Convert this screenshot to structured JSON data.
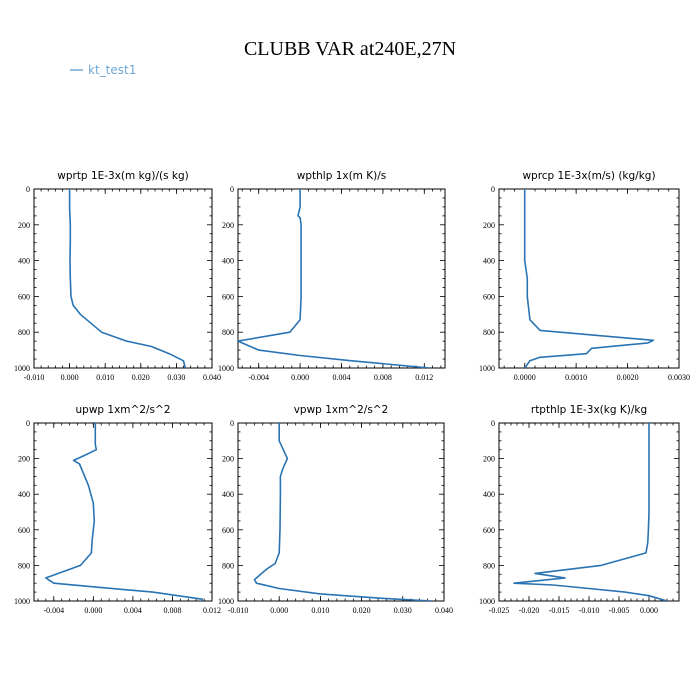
{
  "title": "CLUBB VAR at240E,27N",
  "legend": {
    "label": "kt_test1",
    "color": "#6fa8d6",
    "placement": "top-left"
  },
  "series_color": "#2a73b3",
  "chart_data": [
    {
      "type": "line",
      "title": "wprtp  1E-3x(m kg)/(s kg)",
      "xlim": [
        -0.01,
        0.04
      ],
      "xticks": [
        "-0.010",
        "0.000",
        "0.010",
        "0.020",
        "0.030",
        "0.040"
      ],
      "ylim": [
        1000,
        0
      ],
      "yticks": [
        "0",
        "200",
        "400",
        "600",
        "800",
        "1000"
      ],
      "series": [
        {
          "name": "kt_test1",
          "x": [
            0.0,
            0.0,
            0.0002,
            0.0002,
            0.0001,
            0.0002,
            0.0004,
            0.001,
            0.003,
            0.009,
            0.016,
            0.023,
            0.028,
            0.032,
            0.0325
          ],
          "y": [
            0,
            100,
            200,
            300,
            400,
            500,
            600,
            650,
            700,
            800,
            850,
            880,
            920,
            960,
            1000
          ]
        }
      ]
    },
    {
      "type": "line",
      "title": "wpthlp  1x(m K)/s",
      "xlim": [
        -0.006,
        0.014
      ],
      "xticks": [
        "-0.004",
        "0.000",
        "0.004",
        "0.008",
        "0.012"
      ],
      "ylim": [
        1000,
        0
      ],
      "yticks": [
        "0",
        "200",
        "400",
        "600",
        "800",
        "1000"
      ],
      "series": [
        {
          "name": "kt_test1",
          "x": [
            0.0,
            0.0,
            -0.0002,
            0.0,
            0.0001,
            0.0001,
            0.0001,
            0.0001,
            0.0,
            -0.001,
            -0.006,
            -0.004,
            0.0,
            0.005,
            0.0125
          ],
          "y": [
            0,
            100,
            150,
            160,
            200,
            300,
            400,
            600,
            730,
            800,
            850,
            900,
            930,
            960,
            1000
          ]
        }
      ]
    },
    {
      "type": "line",
      "title": "wprcp  1E-3x(m/s) (kg/kg)",
      "xlim": [
        -0.0005,
        0.003
      ],
      "xticks": [
        "0.0000",
        "0.0010",
        "0.0020",
        "0.0030"
      ],
      "ylim": [
        1000,
        0
      ],
      "yticks": [
        "0",
        "200",
        "400",
        "600",
        "800",
        "1000"
      ],
      "series": [
        {
          "name": "kt_test1",
          "x": [
            0.0,
            0.0,
            0.0,
            0.0,
            0.0,
            5e-05,
            5e-05,
            0.0001,
            0.0003,
            0.0025,
            0.0024,
            0.0013,
            0.0012,
            0.0003,
            0.0001,
            0.0
          ],
          "y": [
            0,
            100,
            200,
            300,
            400,
            500,
            600,
            730,
            790,
            845,
            860,
            890,
            920,
            940,
            960,
            1000
          ]
        }
      ]
    },
    {
      "type": "line",
      "title": "upwp  1xm^2/s^2",
      "xlim": [
        -0.006,
        0.012
      ],
      "xticks": [
        "-0.004",
        "0.000",
        "0.004",
        "0.008",
        "0.012"
      ],
      "ylim": [
        1000,
        0
      ],
      "yticks": [
        "0",
        "200",
        "400",
        "600",
        "800",
        "1000"
      ],
      "series": [
        {
          "name": "kt_test1",
          "x": [
            0.0002,
            0.0002,
            0.0003,
            -0.0008,
            -0.002,
            -0.0014,
            -0.0005,
            0.0,
            0.0001,
            -0.0001,
            -0.0002,
            -0.0013,
            -0.0048,
            -0.004,
            0.0,
            0.006,
            0.011,
            0.011
          ],
          "y": [
            0,
            120,
            150,
            180,
            210,
            230,
            350,
            450,
            550,
            650,
            730,
            800,
            870,
            900,
            920,
            950,
            990,
            1000
          ]
        }
      ]
    },
    {
      "type": "line",
      "title": "vpwp  1xm^2/s^2",
      "xlim": [
        -0.01,
        0.04
      ],
      "xticks": [
        "-0.010",
        "0.000",
        "0.010",
        "0.020",
        "0.030",
        "0.040"
      ],
      "ylim": [
        1000,
        0
      ],
      "yticks": [
        "0",
        "200",
        "400",
        "600",
        "800",
        "1000"
      ],
      "series": [
        {
          "name": "kt_test1",
          "x": [
            0.0,
            0.0,
            0.001,
            0.002,
            0.001,
            0.0003,
            0.0003,
            0.0002,
            0.0,
            -0.001,
            -0.003,
            -0.006,
            -0.0055,
            0.0,
            0.01,
            0.025,
            0.037
          ],
          "y": [
            0,
            100,
            150,
            200,
            250,
            300,
            400,
            600,
            730,
            790,
            820,
            880,
            900,
            930,
            960,
            985,
            1000
          ]
        }
      ]
    },
    {
      "type": "line",
      "title": "rtpthlp  1E-3x(kg K)/kg",
      "xlim": [
        -0.025,
        0.005
      ],
      "xticks": [
        "-0.025",
        "-0.020",
        "-0.015",
        "-0.010",
        "-0.005",
        "0.000"
      ],
      "ylim": [
        1000,
        0
      ],
      "yticks": [
        "0",
        "200",
        "400",
        "600",
        "800",
        "1000"
      ],
      "series": [
        {
          "name": "kt_test1",
          "x": [
            0.0,
            0.0,
            0.0,
            0.0,
            -0.0001,
            -0.0002,
            -0.0005,
            -0.008,
            -0.019,
            -0.014,
            -0.0225,
            -0.016,
            -0.01,
            -0.004,
            0.0,
            0.003
          ],
          "y": [
            0,
            200,
            400,
            500,
            600,
            670,
            730,
            800,
            845,
            870,
            900,
            910,
            930,
            950,
            970,
            1000
          ]
        }
      ]
    }
  ]
}
